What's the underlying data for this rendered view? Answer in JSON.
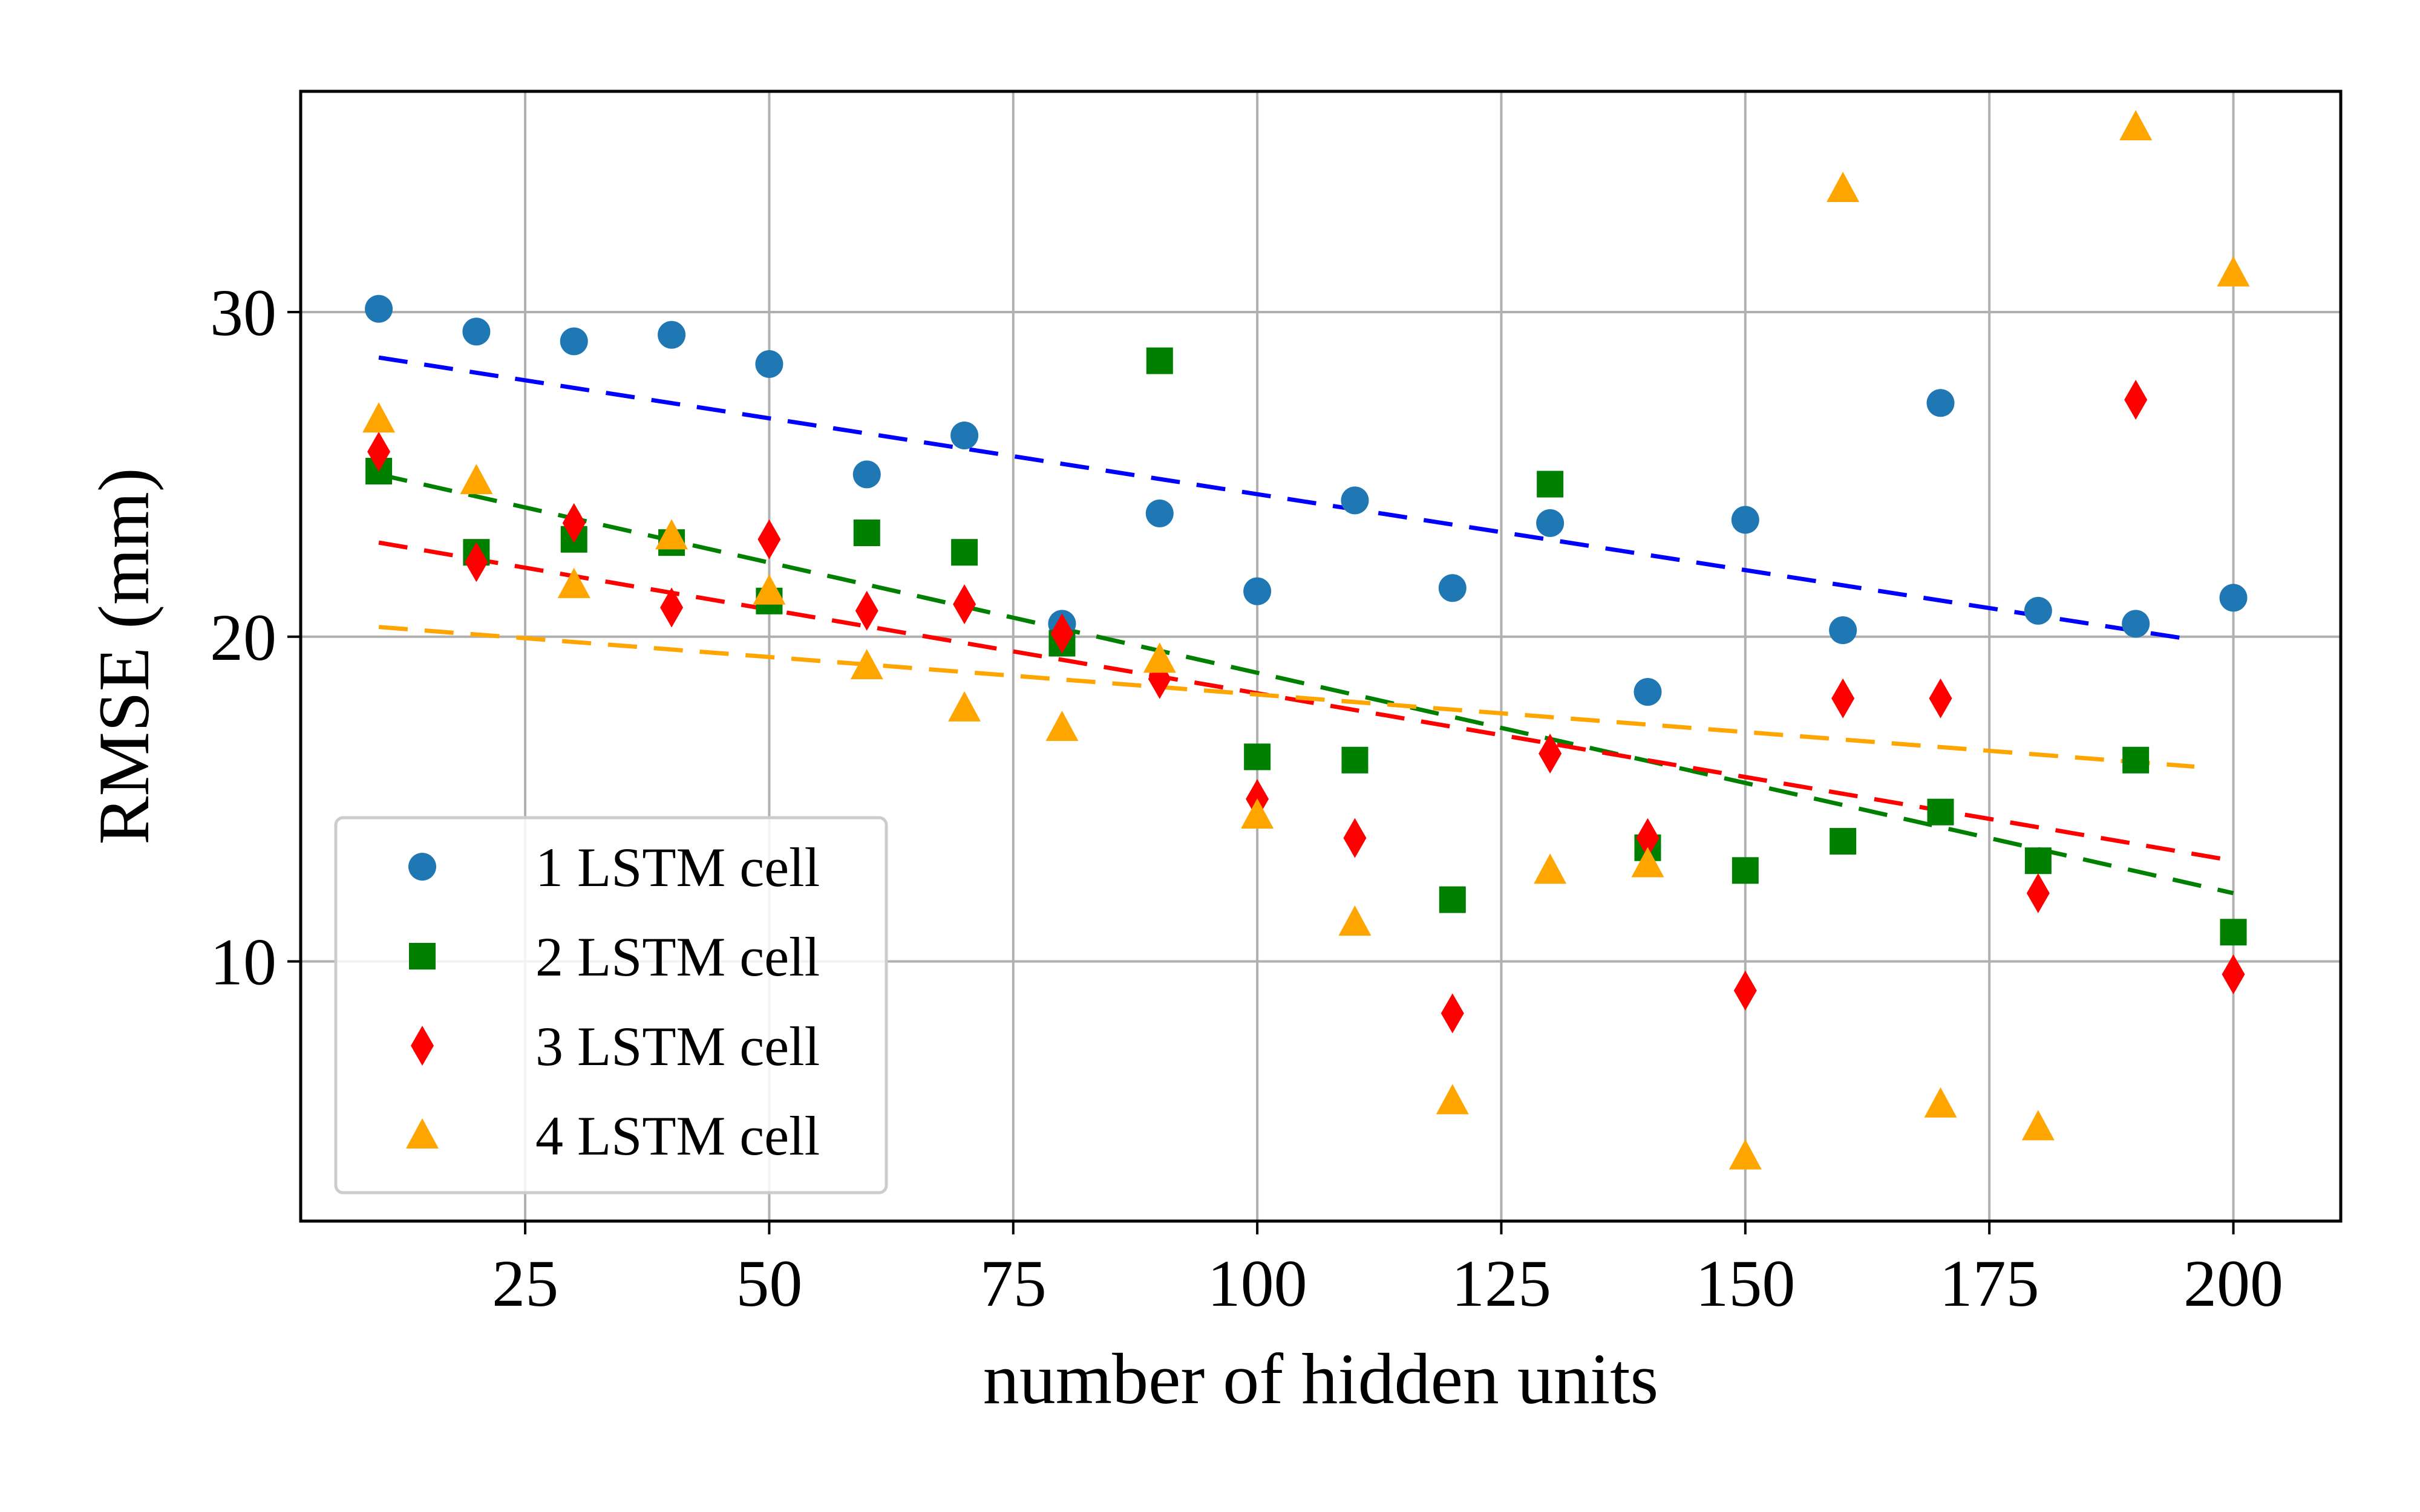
{
  "chart_data": {
    "type": "scatter",
    "xlabel": "number of hidden units",
    "ylabel": "RMSE (mm)",
    "xlim": [
      2,
      211
    ],
    "ylim": [
      2.0,
      36.8
    ],
    "x_ticks": [
      25,
      50,
      75,
      100,
      125,
      150,
      175,
      200
    ],
    "y_ticks": [
      10,
      20,
      30
    ],
    "grid": true,
    "legend_position": "lower-left",
    "x": [
      10,
      20,
      30,
      40,
      50,
      60,
      70,
      80,
      90,
      100,
      110,
      120,
      130,
      140,
      150,
      160,
      170,
      180,
      190,
      200
    ],
    "series": [
      {
        "name": "1 LSTM cell",
        "marker": "circle",
        "color": "#1f77b4",
        "values": [
          30.1,
          29.4,
          29.1,
          29.3,
          28.4,
          25.0,
          26.2,
          20.4,
          23.8,
          21.4,
          24.2,
          21.5,
          23.5,
          18.3,
          23.6,
          20.2,
          27.2,
          20.8,
          20.4,
          21.2
        ],
        "trend": {
          "color": "#0000ff",
          "x": [
            10,
            196
          ],
          "y": [
            28.6,
            19.9
          ]
        }
      },
      {
        "name": "2 LSTM cell",
        "marker": "square",
        "color": "#008000",
        "values": [
          25.1,
          22.6,
          23.0,
          22.9,
          21.1,
          23.2,
          22.6,
          19.8,
          28.5,
          16.3,
          16.2,
          11.9,
          24.7,
          13.5,
          12.8,
          13.7,
          14.6,
          13.1,
          16.2,
          10.9
        ],
        "trend": {
          "color": "#008000",
          "x": [
            10,
            200
          ],
          "y": [
            25.0,
            12.1
          ]
        }
      },
      {
        "name": "3 LSTM cell",
        "marker": "diamond",
        "color": "#ff0000",
        "values": [
          25.7,
          22.3,
          23.5,
          20.9,
          23.0,
          20.8,
          21.0,
          20.1,
          18.7,
          15.0,
          13.8,
          8.4,
          16.4,
          13.8,
          9.1,
          18.1,
          18.1,
          12.1,
          27.3,
          9.6
        ],
        "trend": {
          "color": "#ff0000",
          "x": [
            10,
            200
          ],
          "y": [
            22.9,
            13.1
          ]
        }
      },
      {
        "name": "4 LSTM cell",
        "marker": "triangle",
        "color": "#ffa500",
        "values": [
          26.7,
          24.8,
          21.6,
          23.1,
          21.4,
          19.1,
          17.8,
          17.2,
          19.3,
          14.5,
          11.2,
          5.7,
          12.8,
          13.0,
          4.0,
          33.8,
          5.6,
          4.9,
          35.7,
          31.2
        ],
        "trend": {
          "color": "#ffa500",
          "x": [
            10,
            196
          ],
          "y": [
            20.3,
            16.0
          ]
        }
      }
    ]
  }
}
